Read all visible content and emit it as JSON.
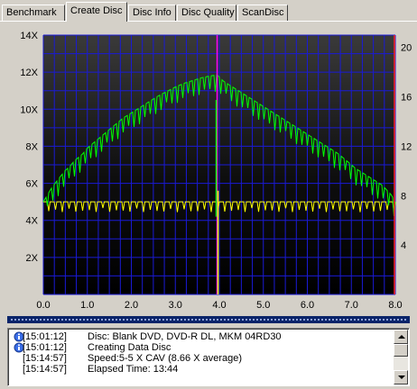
{
  "tabs": [
    {
      "label": "Benchmark",
      "active": false
    },
    {
      "label": "Create Disc",
      "active": true
    },
    {
      "label": "Disc Info",
      "active": false
    },
    {
      "label": "Disc Quality",
      "active": false
    },
    {
      "label": "ScanDisc",
      "active": false
    }
  ],
  "chart_data": {
    "type": "line",
    "x_ticks": [
      "0.0",
      "1.0",
      "2.0",
      "3.0",
      "4.0",
      "5.0",
      "6.0",
      "7.0",
      "8.0"
    ],
    "xlim": [
      0,
      8
    ],
    "y_left_ticks": [
      "2X",
      "4X",
      "6X",
      "8X",
      "10X",
      "12X",
      "14X"
    ],
    "ylim_left": [
      0,
      14
    ],
    "y_right_ticks": [
      "4",
      "8",
      "12",
      "16",
      "20"
    ],
    "ylim_right": [
      0,
      21
    ],
    "grid": true,
    "background": "#000000",
    "grid_color": "#1a1ad6",
    "layer_break_x": 3.95,
    "series": [
      {
        "color": "#00ff00",
        "x": [
          0.0,
          0.1,
          0.2,
          0.3,
          0.4,
          0.5,
          0.6,
          0.7,
          0.8,
          0.9,
          1.0,
          1.2,
          1.4,
          1.6,
          1.8,
          2.0,
          2.2,
          2.4,
          2.6,
          2.8,
          3.0,
          3.2,
          3.4,
          3.6,
          3.8,
          3.95,
          4.1,
          4.3,
          4.5,
          4.7,
          4.9,
          5.1,
          5.3,
          5.5,
          5.7,
          5.9,
          6.1,
          6.3,
          6.5,
          6.7,
          6.9,
          7.1,
          7.3,
          7.5,
          7.7,
          7.9,
          8.0
        ],
        "values": [
          5.0,
          5.4,
          5.8,
          6.1,
          6.4,
          6.7,
          6.9,
          7.2,
          7.4,
          7.6,
          7.9,
          8.3,
          8.7,
          9.1,
          9.5,
          9.8,
          10.1,
          10.4,
          10.7,
          10.95,
          11.2,
          11.4,
          11.55,
          11.7,
          11.8,
          11.85,
          11.5,
          11.2,
          10.9,
          10.6,
          10.3,
          10.0,
          9.7,
          9.4,
          9.1,
          8.8,
          8.5,
          8.2,
          7.9,
          7.6,
          7.2,
          6.8,
          6.5,
          6.2,
          5.9,
          5.4,
          5.0
        ]
      },
      {
        "color": "#ffff00",
        "x": [
          0.0,
          0.5,
          1.0,
          1.5,
          2.0,
          2.5,
          3.0,
          3.5,
          3.95,
          4.4,
          5.0,
          5.5,
          6.0,
          6.5,
          7.0,
          7.5,
          8.0
        ],
        "values": [
          5.0,
          5.0,
          5.0,
          5.0,
          5.0,
          5.0,
          5.0,
          5.0,
          5.0,
          5.0,
          5.0,
          5.0,
          5.0,
          5.0,
          5.0,
          5.0,
          5.0
        ]
      }
    ]
  },
  "log": [
    {
      "icon": "info-icon",
      "time": "[15:01:12]",
      "msg": "Disc: Blank DVD, DVD-R DL, MKM 04RD30"
    },
    {
      "icon": "info-icon",
      "time": "[15:01:12]",
      "msg": "Creating Data Disc"
    },
    {
      "icon": "",
      "time": "[15:14:57]",
      "msg": "Speed:5-5 X CAV (8.66 X average)"
    },
    {
      "icon": "",
      "time": "[15:14:57]",
      "msg": "Elapsed Time: 13:44"
    }
  ]
}
